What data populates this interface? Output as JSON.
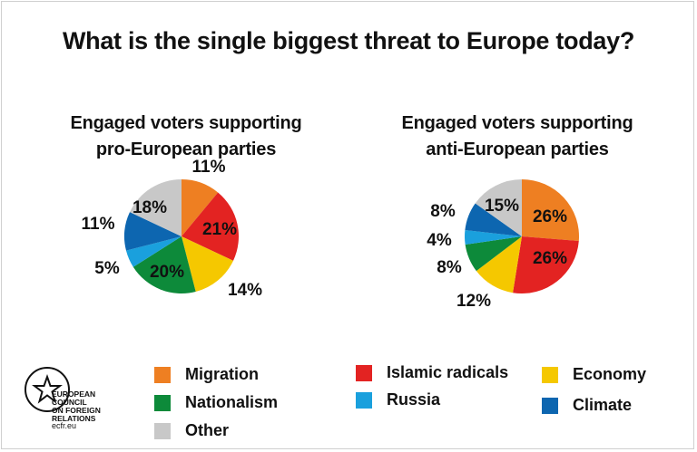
{
  "chart_data": {
    "type": "pie",
    "title": "What is the single biggest threat to Europe today?",
    "charts": [
      {
        "title_line1": "Engaged voters supporting",
        "title_line2": "pro-European parties",
        "slices": [
          {
            "category": "Migration",
            "value": 11,
            "label": "11%"
          },
          {
            "category": "Islamic radicals",
            "value": 21,
            "label": "21%"
          },
          {
            "category": "Economy",
            "value": 14,
            "label": "14%"
          },
          {
            "category": "Nationalism",
            "value": 20,
            "label": "20%"
          },
          {
            "category": "Russia",
            "value": 5,
            "label": "5%"
          },
          {
            "category": "Climate",
            "value": 11,
            "label": "11%"
          },
          {
            "category": "Other",
            "value": 18,
            "label": "18%"
          }
        ]
      },
      {
        "title_line1": "Engaged voters supporting",
        "title_line2": "anti-European parties",
        "slices": [
          {
            "category": "Migration",
            "value": 26,
            "label": "26%"
          },
          {
            "category": "Islamic radicals",
            "value": 26,
            "label": "26%"
          },
          {
            "category": "Economy",
            "value": 12,
            "label": "12%"
          },
          {
            "category": "Nationalism",
            "value": 8,
            "label": "8%"
          },
          {
            "category": "Russia",
            "value": 4,
            "label": "4%"
          },
          {
            "category": "Climate",
            "value": 8,
            "label": "8%"
          },
          {
            "category": "Other",
            "value": 15,
            "label": "15%"
          }
        ]
      }
    ],
    "legend": [
      {
        "label": "Migration",
        "color": "#ee7f22"
      },
      {
        "label": "Nationalism",
        "color": "#0d8a3a"
      },
      {
        "label": "Other",
        "color": "#c8c8c8"
      },
      {
        "label": "Islamic radicals",
        "color": "#e32322"
      },
      {
        "label": "Russia",
        "color": "#1aa0dd"
      },
      {
        "label": "Economy",
        "color": "#f5c800"
      },
      {
        "label": "Climate",
        "color": "#0d66b0"
      }
    ]
  },
  "logo": {
    "line1": "EUROPEAN",
    "line2": "COUNCIL",
    "line3": "ON FOREIGN",
    "line4": "RELATIONS",
    "url": "ecfr.eu"
  }
}
